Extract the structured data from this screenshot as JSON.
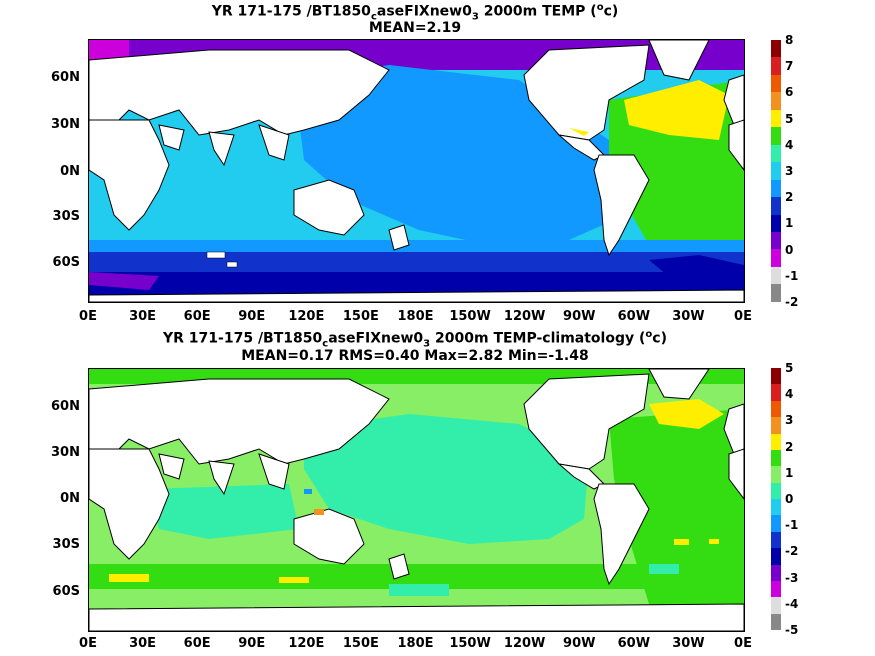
{
  "panel1": {
    "title_line1_a": "YR 171-175 /BT1850",
    "title_line1_sub1": "c",
    "title_line1_b": "aseFIXnew0",
    "title_line1_sub2": "3",
    "title_line1_c": " 2000m TEMP (",
    "title_line1_sup": "o",
    "title_line1_d": "c)",
    "title_line2": "MEAN=2.19",
    "colorbar_labels": [
      "8",
      "7",
      "6",
      "5",
      "4",
      "3",
      "2",
      "1",
      "0",
      "-1",
      "-2"
    ],
    "colorbar_colors": [
      "#8b0000",
      "#d81e1e",
      "#ee5a00",
      "#f29020",
      "#ffee00",
      "#33dd11",
      "#33eeaa",
      "#22ccee",
      "#1199ff",
      "#1133cc",
      "#0000aa",
      "#7700cc",
      "#cc00dd",
      "#dddddd",
      "#888888"
    ]
  },
  "panel2": {
    "title_line1_a": "YR 171-175 /BT1850",
    "title_line1_sub1": "c",
    "title_line1_b": "aseFIXnew0",
    "title_line1_sub2": "3",
    "title_line1_c": " 2000m TEMP-climatology (",
    "title_line1_sup": "o",
    "title_line1_d": "c)",
    "title_line2": "MEAN=0.17   RMS=0.40   Max=2.82   Min=-1.48",
    "colorbar_labels": [
      "5",
      "4",
      "3",
      "2",
      "1",
      "0",
      "-1",
      "-2",
      "-3",
      "-4",
      "-5"
    ],
    "colorbar_colors": [
      "#8b0000",
      "#d81e1e",
      "#ee5a00",
      "#f29020",
      "#ffee00",
      "#33dd11",
      "#88ee66",
      "#33eeaa",
      "#22ccee",
      "#1199ff",
      "#1133cc",
      "#0000aa",
      "#7700cc",
      "#cc00dd",
      "#dddddd",
      "#888888"
    ]
  },
  "map": {
    "lat_labels": [
      "60N",
      "30N",
      "0N",
      "30S",
      "60S"
    ],
    "lon_labels": [
      "0E",
      "30E",
      "60E",
      "90E",
      "120E",
      "150E",
      "180E",
      "150W",
      "120W",
      "90W",
      "60W",
      "30W",
      "0E"
    ]
  },
  "colors": {
    "land": "#ffffff",
    "coast": "#000000"
  }
}
